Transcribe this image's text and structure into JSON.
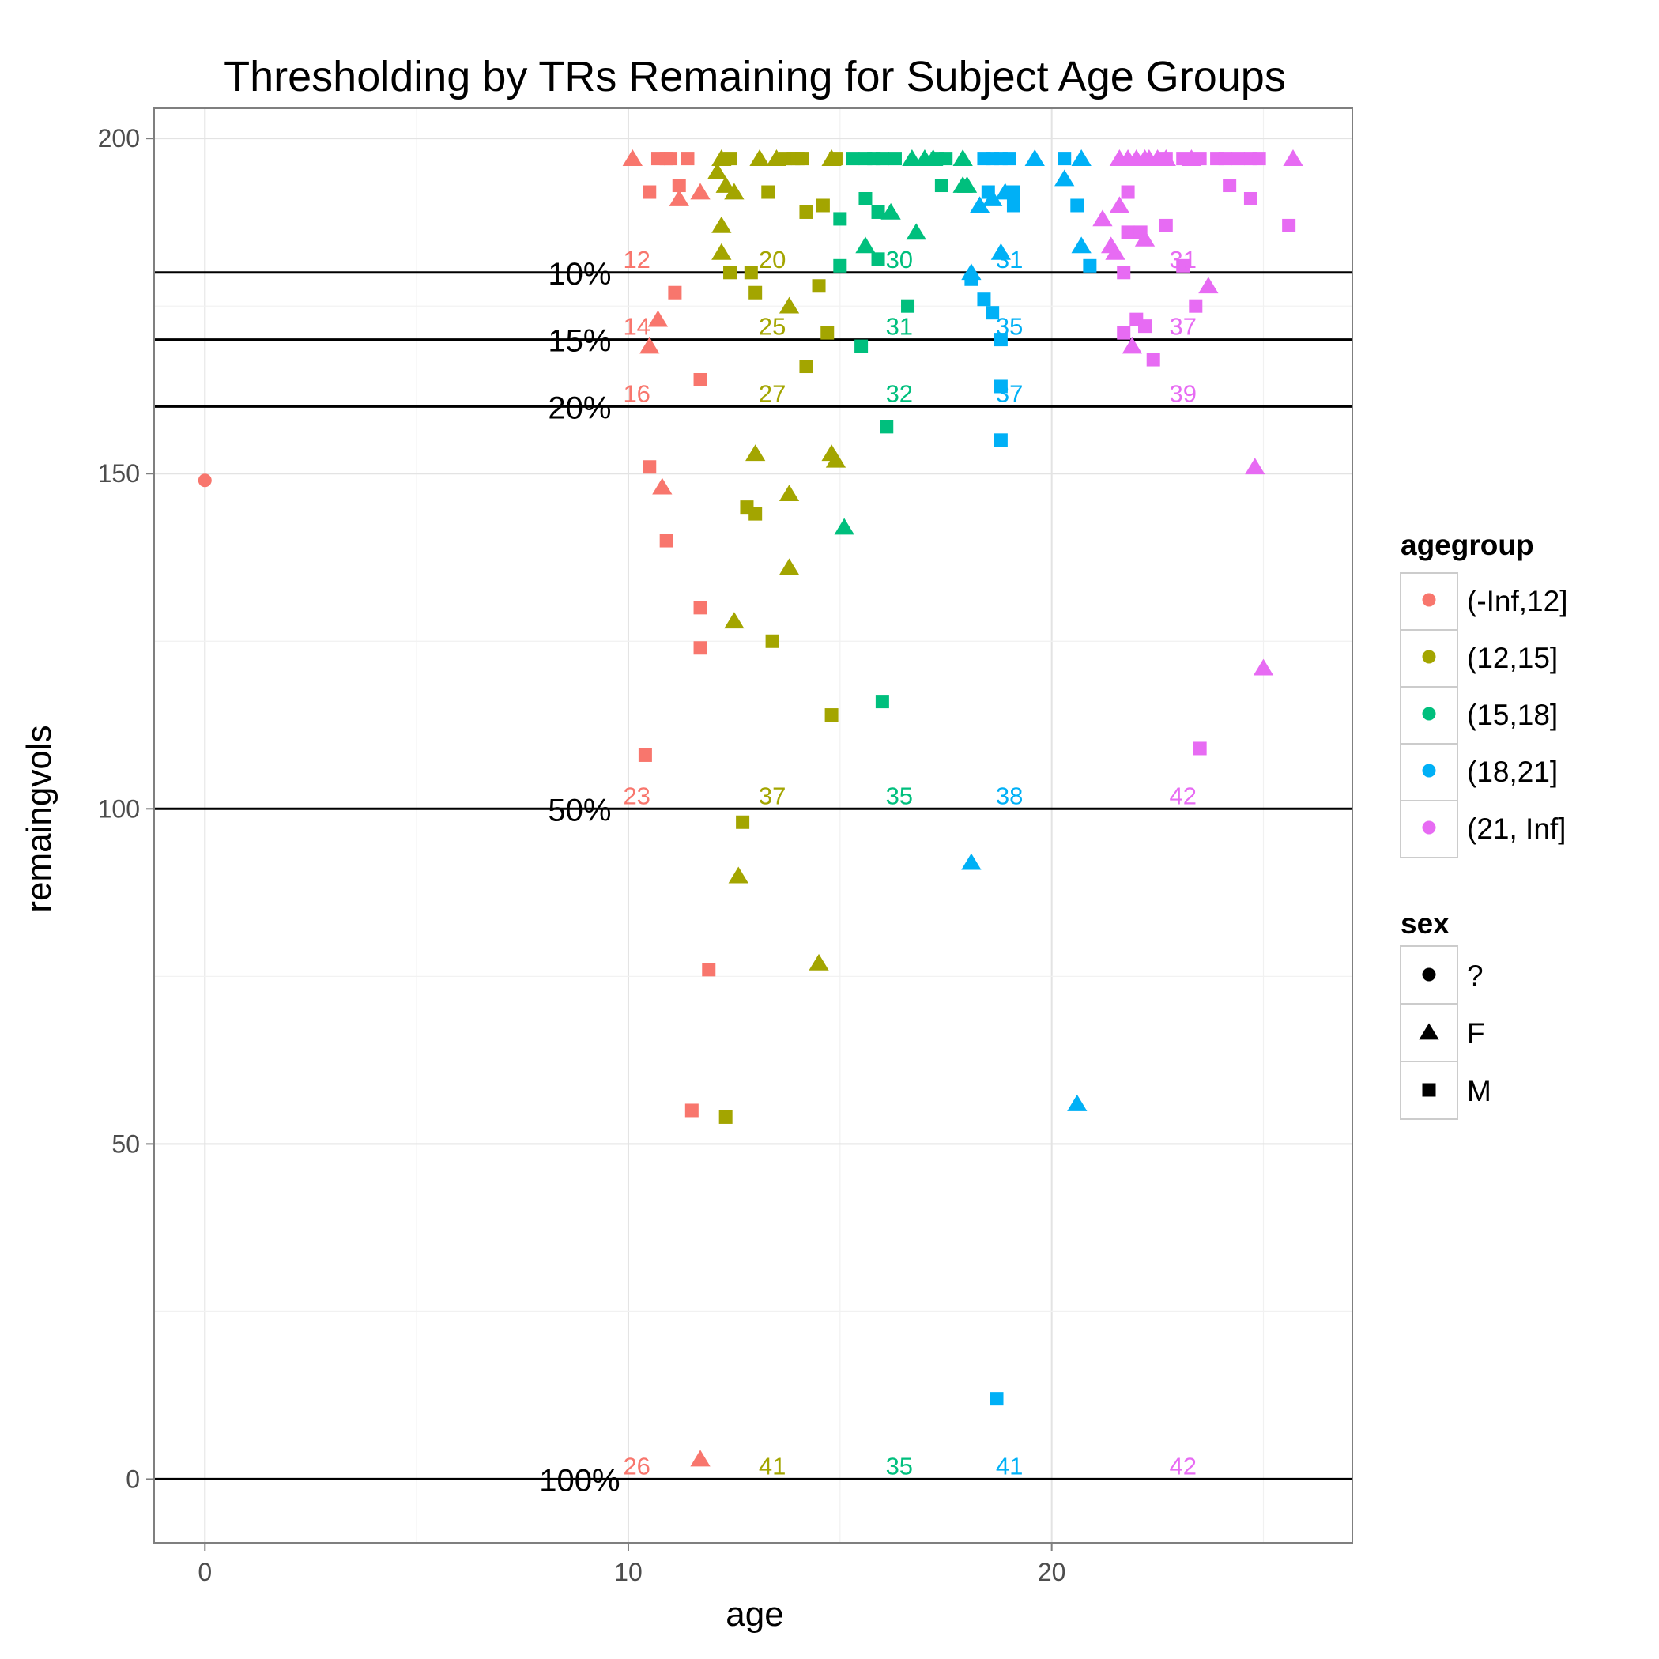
{
  "chart_data": {
    "type": "scatter",
    "title": "Thresholding by TRs Remaining for Subject Age Groups",
    "xlabel": "age",
    "ylabel": "remaingvols",
    "xlim": [
      -1.2,
      27.1
    ],
    "ylim": [
      -9.5,
      204.5
    ],
    "x_ticks": [
      0,
      10,
      20
    ],
    "y_ticks": [
      0,
      50,
      100,
      150,
      200
    ],
    "grid": true,
    "colors": {
      "(-Inf,12]": "#F8766D",
      "(12,15]": "#A3A500",
      "(15,18]": "#00BF7D",
      "(18,21]": "#00B0F6",
      "(21, Inf]": "#E76BF3"
    },
    "thresholds": [
      {
        "value": 180,
        "label": "10%"
      },
      {
        "value": 170,
        "label": "15%"
      },
      {
        "value": 160,
        "label": "20%"
      },
      {
        "value": 100,
        "label": "50%"
      },
      {
        "value": 0,
        "label": "100%"
      }
    ],
    "count_labels": [
      {
        "x": 10.2,
        "y": 182,
        "text": "12",
        "group": "(-Inf,12]"
      },
      {
        "x": 13.4,
        "y": 182,
        "text": "20",
        "group": "(12,15]"
      },
      {
        "x": 16.4,
        "y": 182,
        "text": "30",
        "group": "(15,18]"
      },
      {
        "x": 19.0,
        "y": 182,
        "text": "31",
        "group": "(18,21]"
      },
      {
        "x": 23.1,
        "y": 182,
        "text": "31",
        "group": "(21, Inf]"
      },
      {
        "x": 10.2,
        "y": 172,
        "text": "14",
        "group": "(-Inf,12]"
      },
      {
        "x": 13.4,
        "y": 172,
        "text": "25",
        "group": "(12,15]"
      },
      {
        "x": 16.4,
        "y": 172,
        "text": "31",
        "group": "(15,18]"
      },
      {
        "x": 19.0,
        "y": 172,
        "text": "35",
        "group": "(18,21]"
      },
      {
        "x": 23.1,
        "y": 172,
        "text": "37",
        "group": "(21, Inf]"
      },
      {
        "x": 10.2,
        "y": 162,
        "text": "16",
        "group": "(-Inf,12]"
      },
      {
        "x": 13.4,
        "y": 162,
        "text": "27",
        "group": "(12,15]"
      },
      {
        "x": 16.4,
        "y": 162,
        "text": "32",
        "group": "(15,18]"
      },
      {
        "x": 19.0,
        "y": 162,
        "text": "37",
        "group": "(18,21]"
      },
      {
        "x": 23.1,
        "y": 162,
        "text": "39",
        "group": "(21, Inf]"
      },
      {
        "x": 10.2,
        "y": 102,
        "text": "23",
        "group": "(-Inf,12]"
      },
      {
        "x": 13.4,
        "y": 102,
        "text": "37",
        "group": "(12,15]"
      },
      {
        "x": 16.4,
        "y": 102,
        "text": "35",
        "group": "(15,18]"
      },
      {
        "x": 19.0,
        "y": 102,
        "text": "38",
        "group": "(18,21]"
      },
      {
        "x": 23.1,
        "y": 102,
        "text": "42",
        "group": "(21, Inf]"
      },
      {
        "x": 10.2,
        "y": 2,
        "text": "26",
        "group": "(-Inf,12]"
      },
      {
        "x": 13.4,
        "y": 2,
        "text": "41",
        "group": "(12,15]"
      },
      {
        "x": 16.4,
        "y": 2,
        "text": "35",
        "group": "(15,18]"
      },
      {
        "x": 19.0,
        "y": 2,
        "text": "41",
        "group": "(18,21]"
      },
      {
        "x": 23.1,
        "y": 2,
        "text": "42",
        "group": "(21, Inf]"
      }
    ],
    "series": [
      {
        "name": "(-Inf,12]",
        "points": [
          [
            0.0,
            149,
            "?"
          ],
          [
            10.1,
            197,
            "F"
          ],
          [
            10.5,
            192,
            "M"
          ],
          [
            10.7,
            197,
            "M"
          ],
          [
            10.9,
            197,
            "M"
          ],
          [
            11.0,
            197,
            "M"
          ],
          [
            11.4,
            197,
            "M"
          ],
          [
            11.2,
            191,
            "F"
          ],
          [
            11.2,
            193,
            "M"
          ],
          [
            11.7,
            192,
            "F"
          ],
          [
            10.7,
            173,
            "F"
          ],
          [
            10.5,
            169,
            "F"
          ],
          [
            11.1,
            177,
            "M"
          ],
          [
            11.7,
            164,
            "M"
          ],
          [
            10.5,
            151,
            "M"
          ],
          [
            10.8,
            148,
            "F"
          ],
          [
            10.9,
            140,
            "M"
          ],
          [
            11.7,
            130,
            "M"
          ],
          [
            11.7,
            124,
            "M"
          ],
          [
            10.4,
            108,
            "M"
          ],
          [
            11.9,
            76,
            "M"
          ],
          [
            11.5,
            55,
            "M"
          ],
          [
            11.7,
            3,
            "F"
          ]
        ]
      },
      {
        "name": "(12,15]",
        "points": [
          [
            12.1,
            195,
            "F"
          ],
          [
            12.2,
            197,
            "F"
          ],
          [
            12.4,
            197,
            "M"
          ],
          [
            12.3,
            193,
            "F"
          ],
          [
            12.5,
            192,
            "F"
          ],
          [
            13.1,
            197,
            "F"
          ],
          [
            13.5,
            197,
            "F"
          ],
          [
            13.7,
            197,
            "M"
          ],
          [
            13.9,
            197,
            "M"
          ],
          [
            14.0,
            197,
            "M"
          ],
          [
            14.1,
            197,
            "M"
          ],
          [
            14.8,
            197,
            "F"
          ],
          [
            14.9,
            197,
            "M"
          ],
          [
            13.3,
            192,
            "M"
          ],
          [
            14.2,
            189,
            "M"
          ],
          [
            14.6,
            190,
            "M"
          ],
          [
            12.2,
            187,
            "F"
          ],
          [
            12.2,
            183,
            "F"
          ],
          [
            12.4,
            180,
            "M"
          ],
          [
            12.9,
            180,
            "M"
          ],
          [
            13.0,
            177,
            "M"
          ],
          [
            13.8,
            175,
            "F"
          ],
          [
            14.5,
            178,
            "M"
          ],
          [
            14.7,
            171,
            "M"
          ],
          [
            14.2,
            166,
            "M"
          ],
          [
            13.0,
            153,
            "F"
          ],
          [
            14.8,
            153,
            "F"
          ],
          [
            14.9,
            152,
            "F"
          ],
          [
            13.8,
            147,
            "F"
          ],
          [
            12.8,
            145,
            "M"
          ],
          [
            13.0,
            144,
            "M"
          ],
          [
            13.8,
            136,
            "F"
          ],
          [
            12.5,
            128,
            "F"
          ],
          [
            13.4,
            125,
            "M"
          ],
          [
            14.8,
            114,
            "M"
          ],
          [
            12.7,
            98,
            "M"
          ],
          [
            12.6,
            90,
            "F"
          ],
          [
            14.5,
            77,
            "F"
          ],
          [
            12.3,
            54,
            "M"
          ]
        ]
      },
      {
        "name": "(15,18]",
        "points": [
          [
            15.3,
            197,
            "M"
          ],
          [
            15.6,
            197,
            "M"
          ],
          [
            15.8,
            197,
            "M"
          ],
          [
            16.0,
            197,
            "M"
          ],
          [
            16.3,
            197,
            "M"
          ],
          [
            16.7,
            197,
            "F"
          ],
          [
            17.0,
            197,
            "F"
          ],
          [
            17.2,
            197,
            "F"
          ],
          [
            17.3,
            197,
            "M"
          ],
          [
            17.5,
            197,
            "M"
          ],
          [
            17.9,
            197,
            "F"
          ],
          [
            15.6,
            191,
            "M"
          ],
          [
            15.9,
            189,
            "M"
          ],
          [
            16.2,
            189,
            "F"
          ],
          [
            17.4,
            193,
            "M"
          ],
          [
            17.9,
            193,
            "F"
          ],
          [
            18.0,
            193,
            "F"
          ],
          [
            15.0,
            188,
            "M"
          ],
          [
            16.8,
            186,
            "F"
          ],
          [
            15.6,
            184,
            "F"
          ],
          [
            15.9,
            182,
            "M"
          ],
          [
            15.0,
            181,
            "M"
          ],
          [
            16.6,
            175,
            "M"
          ],
          [
            15.5,
            169,
            "M"
          ],
          [
            16.1,
            157,
            "M"
          ],
          [
            15.1,
            142,
            "F"
          ],
          [
            16.0,
            116,
            "M"
          ]
        ]
      },
      {
        "name": "(18,21]",
        "points": [
          [
            18.4,
            197,
            "M"
          ],
          [
            18.6,
            197,
            "M"
          ],
          [
            18.8,
            197,
            "M"
          ],
          [
            19.0,
            197,
            "M"
          ],
          [
            19.6,
            197,
            "F"
          ],
          [
            20.3,
            197,
            "M"
          ],
          [
            20.7,
            197,
            "F"
          ],
          [
            20.3,
            194,
            "F"
          ],
          [
            18.5,
            192,
            "M"
          ],
          [
            18.9,
            192,
            "F"
          ],
          [
            19.1,
            192,
            "M"
          ],
          [
            18.3,
            190,
            "F"
          ],
          [
            18.6,
            191,
            "F"
          ],
          [
            19.1,
            190,
            "M"
          ],
          [
            20.6,
            190,
            "M"
          ],
          [
            20.7,
            184,
            "F"
          ],
          [
            18.8,
            183,
            "F"
          ],
          [
            20.9,
            181,
            "M"
          ],
          [
            18.1,
            180,
            "F"
          ],
          [
            18.1,
            179,
            "M"
          ],
          [
            18.4,
            176,
            "M"
          ],
          [
            18.6,
            174,
            "M"
          ],
          [
            18.8,
            170,
            "M"
          ],
          [
            18.8,
            163,
            "M"
          ],
          [
            18.8,
            155,
            "M"
          ],
          [
            18.1,
            92,
            "F"
          ],
          [
            20.6,
            56,
            "F"
          ],
          [
            18.7,
            12,
            "M"
          ]
        ]
      },
      {
        "name": "(21, Inf]",
        "points": [
          [
            21.6,
            197,
            "F"
          ],
          [
            21.8,
            197,
            "F"
          ],
          [
            22.0,
            197,
            "F"
          ],
          [
            22.2,
            197,
            "F"
          ],
          [
            22.3,
            197,
            "F"
          ],
          [
            22.5,
            197,
            "F"
          ],
          [
            22.7,
            197,
            "F"
          ],
          [
            23.3,
            197,
            "F"
          ],
          [
            22.7,
            197,
            "M"
          ],
          [
            23.1,
            197,
            "M"
          ],
          [
            23.5,
            197,
            "M"
          ],
          [
            23.9,
            197,
            "M"
          ],
          [
            24.1,
            197,
            "M"
          ],
          [
            24.4,
            197,
            "M"
          ],
          [
            24.7,
            197,
            "M"
          ],
          [
            24.9,
            197,
            "M"
          ],
          [
            25.7,
            197,
            "F"
          ],
          [
            24.2,
            193,
            "M"
          ],
          [
            21.6,
            190,
            "F"
          ],
          [
            21.8,
            192,
            "M"
          ],
          [
            24.7,
            191,
            "M"
          ],
          [
            21.2,
            188,
            "F"
          ],
          [
            22.7,
            187,
            "M"
          ],
          [
            25.6,
            187,
            "M"
          ],
          [
            21.8,
            186,
            "M"
          ],
          [
            22.1,
            186,
            "M"
          ],
          [
            22.2,
            185,
            "F"
          ],
          [
            21.4,
            184,
            "F"
          ],
          [
            21.5,
            183,
            "F"
          ],
          [
            23.1,
            181,
            "M"
          ],
          [
            21.7,
            180,
            "M"
          ],
          [
            23.7,
            178,
            "F"
          ],
          [
            23.4,
            175,
            "M"
          ],
          [
            22.0,
            173,
            "M"
          ],
          [
            22.2,
            172,
            "M"
          ],
          [
            21.7,
            171,
            "M"
          ],
          [
            21.9,
            169,
            "F"
          ],
          [
            22.4,
            167,
            "M"
          ],
          [
            24.8,
            151,
            "F"
          ],
          [
            25.0,
            121,
            "F"
          ],
          [
            23.5,
            109,
            "M"
          ]
        ]
      }
    ],
    "legend": {
      "position": "right",
      "agegroup_title": "agegroup",
      "agegroup_items": [
        "(-Inf,12]",
        "(12,15]",
        "(15,18]",
        "(18,21]",
        "(21, Inf]"
      ],
      "sex_title": "sex",
      "sex_items": [
        "?",
        "F",
        "M"
      ]
    }
  }
}
